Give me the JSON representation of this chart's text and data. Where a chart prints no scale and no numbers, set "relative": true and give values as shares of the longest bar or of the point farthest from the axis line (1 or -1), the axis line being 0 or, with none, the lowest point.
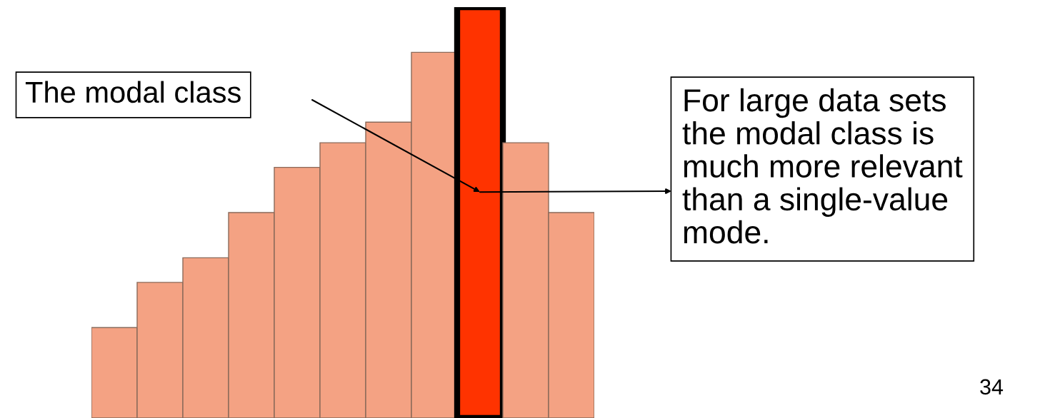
{
  "chart_data": {
    "type": "bar",
    "relative": true,
    "categories": [
      null,
      null,
      null,
      null,
      null,
      null,
      null,
      null,
      null,
      null,
      null
    ],
    "values": [
      0.22,
      0.33,
      0.39,
      0.5,
      0.61,
      0.67,
      0.72,
      0.89,
      1,
      0.67,
      0.5
    ],
    "colors": [
      "#f4a283",
      "#f4a283",
      "#f4a283",
      "#f4a283",
      "#f4a283",
      "#f4a283",
      "#f4a283",
      "#f4a283",
      "#ff3300",
      "#f4a283",
      "#f4a283"
    ],
    "annotations": [
      "The modal class",
      "For large data sets\nthe modal class is\nmuch more relevant\nthan a single-value\nmode.",
      "34"
    ],
    "grid": false,
    "legend": false
  }
}
